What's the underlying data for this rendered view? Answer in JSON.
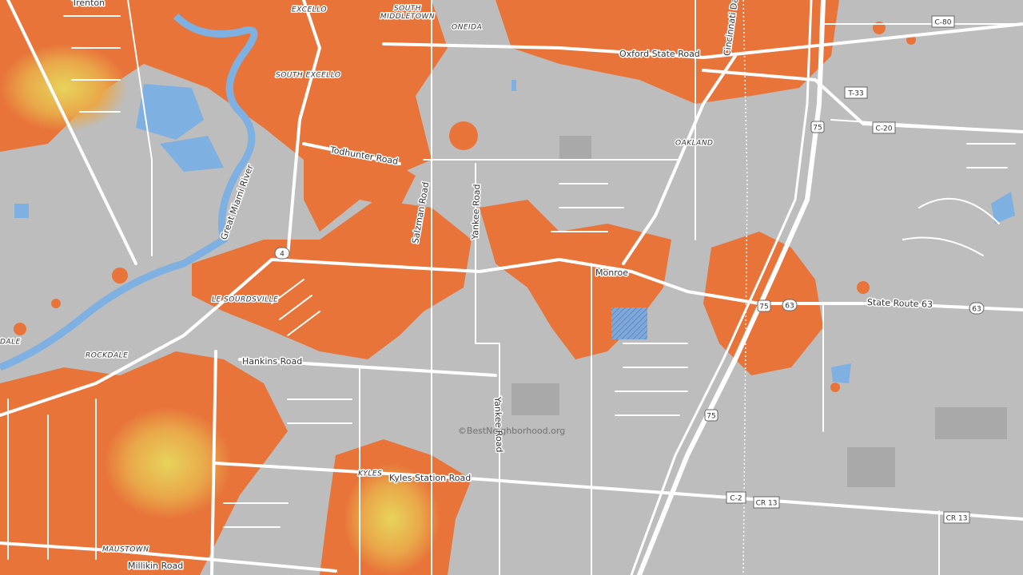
{
  "places": {
    "trenton": "Trenton",
    "excello": "EXCELLO",
    "south_middletown": "SOUTH\nMIDDLETOWN",
    "oneida": "ONEIDA",
    "south_excello": "SOUTH EXCELLO",
    "oakland": "OAKLAND",
    "monroe": "Monroe",
    "le_sourdsville": "LE SOURDSVILLE",
    "rockdale": "ROCKDALE",
    "dale": "DALE",
    "kyles": "KYLES",
    "maustown": "MAUSTOWN"
  },
  "roads": {
    "oxford": "Oxford State Road",
    "todhunter": "Todhunter Road",
    "salzman": "Salzman Road",
    "yankee_north": "Yankee Road",
    "yankee_south": "Yankee Road",
    "cincinnati": "Cincinnati Da",
    "state_route_63": "State Route 63",
    "hankins": "Hankins Road",
    "kyles_station": "Kyles Station Road",
    "millikin": "Millikin Road"
  },
  "water": {
    "river": "Great Miami River"
  },
  "shields": {
    "c80": "C-80",
    "t33": "T-33",
    "c20": "C-20",
    "i75_north": "75",
    "sr4": "4",
    "i75_mid": "75",
    "sr63_a": "63",
    "sr63_b": "63",
    "i75_south": "75",
    "c2": "C-2",
    "cr13_a": "CR 13",
    "cr13_b": "CR 13"
  },
  "watermark": "©BestNeighborhood.org"
}
